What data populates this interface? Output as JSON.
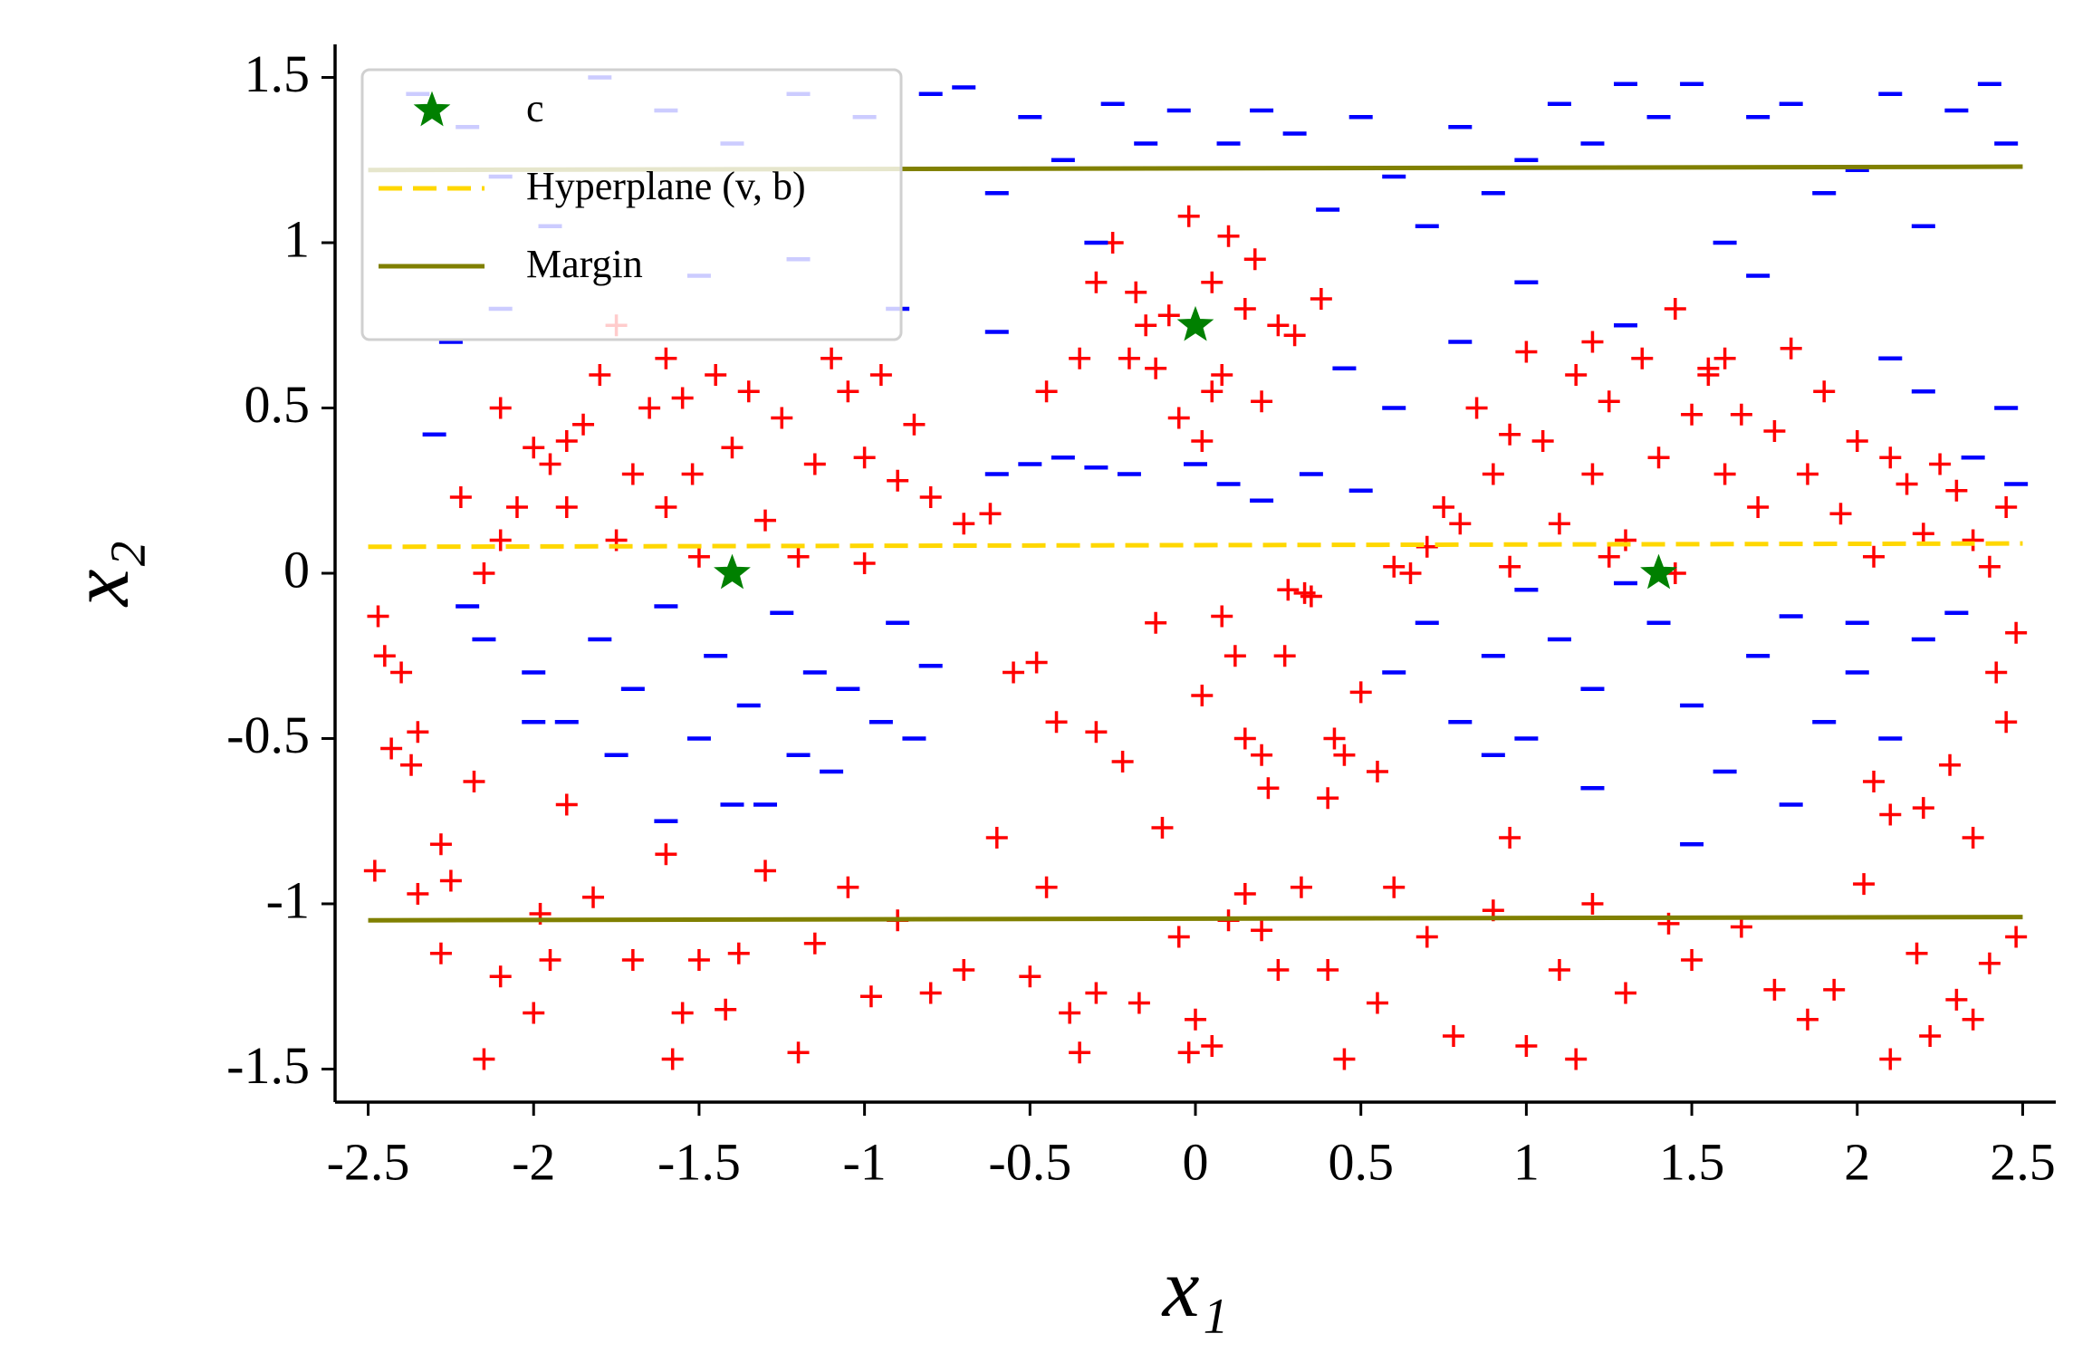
{
  "chart_data": {
    "type": "scatter",
    "xlabel": "x₁",
    "ylabel": "x₂",
    "xlim": [
      -2.6,
      2.6
    ],
    "ylim": [
      -1.6,
      1.6
    ],
    "xticks": [
      -2.5,
      -2,
      -1.5,
      -1,
      -0.5,
      0,
      0.5,
      1,
      1.5,
      2,
      2.5
    ],
    "yticks": [
      -1.5,
      -1,
      -0.5,
      0,
      0.5,
      1,
      1.5
    ],
    "legend": "upper left",
    "series": [
      {
        "color": "#ff0000",
        "marker": "+",
        "x": [
          -2.47,
          -2.45,
          -2.43,
          -2.4,
          -2.37,
          -2.35,
          -2.48,
          -2.35,
          -2.28,
          -2.25,
          -2.28,
          -2.15,
          -2.18,
          -2.1,
          -2.0,
          -1.98,
          -1.95,
          -1.9,
          -1.82,
          -1.7,
          -1.6,
          -1.55,
          -1.58,
          -1.5,
          -1.42,
          -1.38,
          -1.3,
          -1.2,
          -1.15,
          -1.05,
          -0.98,
          -0.9,
          -0.8,
          -0.7,
          -0.6,
          -0.5,
          -0.45,
          -0.38,
          -0.35,
          -0.3,
          -0.17,
          -0.1,
          -0.05,
          -0.02,
          0.05,
          0.0,
          0.1,
          0.15,
          0.2,
          0.25,
          0.32,
          0.4,
          0.45,
          0.55,
          0.6,
          0.7,
          0.78,
          0.9,
          0.95,
          1.0,
          1.1,
          1.15,
          1.2,
          1.3,
          1.43,
          1.5,
          1.65,
          1.75,
          1.85,
          1.93,
          2.02,
          2.1,
          2.18,
          2.22,
          2.3,
          2.35,
          2.4,
          2.48,
          2.45,
          2.42,
          2.35,
          2.28,
          2.2,
          2.1,
          2.05,
          2.48,
          -0.55,
          -0.48,
          -0.42,
          -0.3,
          -0.22,
          -0.12,
          0.02,
          0.08,
          0.12,
          0.15,
          0.2,
          0.27,
          0.35,
          0.42,
          0.22,
          0.5,
          0.55,
          0.45,
          0.4,
          -2.22,
          -2.1,
          -2.05,
          -2.0,
          -1.95,
          -1.9,
          -1.85,
          -1.8,
          -1.75,
          -1.7,
          -1.65,
          -1.6,
          -1.55,
          -1.52,
          -1.45,
          -1.4,
          -1.35,
          -1.3,
          -1.25,
          -1.15,
          -1.1,
          -1.05,
          -1.0,
          -0.95,
          -0.9,
          -0.85,
          -0.8,
          -0.7,
          -0.62,
          -1.5,
          -1.2,
          -1.0,
          -2.15,
          -2.1,
          -1.9,
          -1.75,
          -1.6,
          -0.45,
          -0.35,
          -0.3,
          -0.25,
          -0.2,
          -0.15,
          -0.18,
          -0.12,
          -0.08,
          -0.05,
          -0.02,
          0.02,
          0.05,
          0.08,
          0.1,
          0.15,
          0.18,
          0.2,
          0.25,
          0.3,
          0.38,
          0.05,
          0.6,
          0.65,
          0.7,
          0.75,
          0.8,
          0.85,
          0.9,
          0.95,
          1.0,
          1.05,
          1.1,
          1.15,
          1.2,
          1.25,
          1.3,
          1.35,
          1.4,
          1.45,
          1.5,
          1.55,
          1.6,
          1.65,
          1.7,
          1.75,
          1.8,
          1.85,
          1.9,
          1.95,
          2.0,
          2.05,
          2.1,
          2.15,
          2.2,
          2.25,
          2.3,
          2.35,
          2.4,
          2.45,
          1.25,
          1.45,
          0.95,
          0.33,
          0.28,
          1.2,
          1.55,
          1.6
        ],
        "values": [
          -0.13,
          -0.25,
          -0.53,
          -0.3,
          -0.58,
          -0.48,
          -0.9,
          -0.97,
          -0.82,
          -0.93,
          -1.15,
          -1.47,
          -0.63,
          -1.22,
          -1.33,
          -1.03,
          -1.17,
          -0.7,
          -0.98,
          -1.17,
          -0.85,
          -1.33,
          -1.47,
          -1.17,
          -1.32,
          -1.15,
          -0.9,
          -1.45,
          -1.12,
          -0.95,
          -1.28,
          -1.05,
          -1.27,
          -1.2,
          -0.8,
          -1.22,
          -0.95,
          -1.33,
          -1.45,
          -1.27,
          -1.3,
          -0.77,
          -1.1,
          -1.45,
          -1.43,
          -1.35,
          -1.05,
          -0.97,
          -1.08,
          -1.2,
          -0.95,
          -1.2,
          -1.47,
          -1.3,
          -0.95,
          -1.1,
          -1.4,
          -1.02,
          -0.8,
          -1.43,
          -1.2,
          -1.47,
          -1.0,
          -1.27,
          -1.06,
          -1.17,
          -1.07,
          -1.26,
          -1.35,
          -1.26,
          -0.94,
          -1.47,
          -1.15,
          -1.4,
          -1.29,
          -1.35,
          -1.18,
          -1.1,
          -0.45,
          -0.3,
          -0.8,
          -0.58,
          -0.71,
          -0.73,
          -0.63,
          -0.18,
          -0.3,
          -0.27,
          -0.45,
          -0.48,
          -0.57,
          -0.15,
          -0.37,
          -0.13,
          -0.25,
          -0.5,
          -0.55,
          -0.25,
          -0.07,
          -0.5,
          -0.65,
          -0.36,
          -0.6,
          -0.55,
          -0.68,
          0.23,
          0.1,
          0.2,
          0.38,
          0.33,
          0.2,
          0.45,
          0.6,
          0.75,
          0.3,
          0.5,
          0.2,
          0.53,
          0.3,
          0.6,
          0.38,
          0.55,
          0.16,
          0.47,
          0.33,
          0.65,
          0.55,
          0.35,
          0.6,
          0.28,
          0.45,
          0.23,
          0.15,
          0.18,
          0.05,
          0.05,
          0.03,
          0.0,
          0.5,
          0.4,
          0.1,
          0.65,
          0.55,
          0.65,
          0.88,
          1.0,
          0.65,
          0.75,
          0.85,
          0.62,
          0.78,
          0.47,
          1.08,
          0.4,
          0.88,
          0.6,
          1.02,
          0.8,
          0.95,
          0.52,
          0.75,
          0.72,
          0.83,
          0.55,
          0.02,
          0.0,
          0.08,
          0.2,
          0.15,
          0.5,
          0.3,
          0.42,
          0.67,
          0.4,
          0.15,
          0.6,
          0.3,
          0.52,
          0.1,
          0.65,
          0.35,
          0.8,
          0.48,
          0.62,
          0.3,
          0.48,
          0.2,
          0.43,
          0.68,
          0.3,
          0.55,
          0.18,
          0.4,
          0.05,
          0.35,
          0.27,
          0.12,
          0.33,
          0.25,
          0.1,
          0.02,
          0.2,
          0.05,
          0.0,
          0.02,
          -0.06,
          -0.05,
          0.7,
          0.6,
          0.65
        ]
      },
      {
        "color": "#0000ff",
        "marker": "_",
        "x": [
          -2.35,
          -2.2,
          -2.1,
          -1.8,
          -1.6,
          -1.4,
          -1.2,
          -1.0,
          -0.8,
          -0.7,
          -0.6,
          -0.5,
          -0.4,
          -0.3,
          -0.25,
          -0.15,
          -0.05,
          0.1,
          0.2,
          0.3,
          0.4,
          0.5,
          0.6,
          0.7,
          0.8,
          0.9,
          1.0,
          1.1,
          1.2,
          1.3,
          1.4,
          1.5,
          1.6,
          1.7,
          1.8,
          1.9,
          2.0,
          2.1,
          2.2,
          2.3,
          2.4,
          2.45,
          2.35,
          2.45,
          2.48,
          2.2,
          0.6,
          0.8,
          1.0,
          1.3,
          1.7,
          2.1,
          -2.3,
          -2.25,
          -2.1,
          -1.95,
          -1.5,
          -1.2,
          -0.9,
          -0.6,
          -0.4,
          -0.3,
          -0.2,
          0.0,
          0.1,
          0.2,
          0.35,
          0.45,
          0.5,
          -0.6,
          -0.5,
          -2.2,
          -2.15,
          -2.0,
          -1.9,
          -1.8,
          -1.7,
          -1.6,
          -1.5,
          -1.45,
          -1.35,
          -1.3,
          -1.25,
          -1.15,
          -1.1,
          -1.05,
          -0.95,
          -0.9,
          -0.85,
          -0.8,
          -1.4,
          -1.6,
          -1.2,
          -2.0,
          -1.75,
          0.6,
          0.7,
          0.8,
          0.9,
          1.0,
          1.1,
          1.2,
          1.3,
          1.4,
          1.5,
          1.6,
          1.7,
          1.8,
          1.9,
          2.0,
          2.1,
          2.2,
          2.3,
          1.5,
          1.8,
          1.2,
          0.9,
          2.0,
          1.0
        ],
        "values": [
          1.45,
          1.35,
          1.2,
          1.5,
          1.4,
          1.3,
          1.45,
          1.38,
          1.45,
          1.47,
          1.15,
          1.38,
          1.25,
          1.0,
          1.42,
          1.3,
          1.4,
          1.3,
          1.4,
          1.33,
          1.1,
          1.38,
          1.2,
          1.05,
          1.35,
          1.15,
          1.25,
          1.42,
          1.3,
          1.48,
          1.38,
          1.48,
          1.0,
          1.38,
          1.42,
          1.15,
          1.22,
          1.45,
          1.05,
          1.4,
          1.48,
          1.3,
          0.35,
          0.5,
          0.27,
          0.55,
          0.5,
          0.7,
          0.88,
          0.75,
          0.9,
          0.65,
          0.42,
          0.7,
          0.8,
          1.05,
          0.9,
          0.95,
          0.8,
          0.73,
          0.35,
          0.32,
          0.3,
          0.33,
          0.27,
          0.22,
          0.3,
          0.62,
          0.25,
          0.3,
          0.33,
          -0.1,
          -0.2,
          -0.3,
          -0.45,
          -0.2,
          -0.35,
          -0.1,
          -0.5,
          -0.25,
          -0.4,
          -0.7,
          -0.12,
          -0.3,
          -0.6,
          -0.35,
          -0.45,
          -0.15,
          -0.5,
          -0.28,
          -0.7,
          -0.75,
          -0.55,
          -0.45,
          -0.55,
          -0.3,
          -0.15,
          -0.45,
          -0.25,
          -0.5,
          -0.2,
          -0.35,
          -0.03,
          -0.15,
          -0.4,
          -0.6,
          -0.25,
          -0.13,
          -0.45,
          -0.3,
          -0.5,
          -0.2,
          -0.12,
          -0.82,
          -0.7,
          -0.65,
          -0.55,
          -0.15,
          -0.05
        ]
      },
      {
        "name": "c",
        "color": "#008000",
        "marker": "*",
        "x": [
          -1.4,
          0,
          1.4
        ],
        "values": [
          0,
          0.75,
          0
        ]
      },
      {
        "name": "Hyperplane (v, b)",
        "color": "#ffd700",
        "linestyle": "dashed",
        "x": [
          -2.5,
          2.5
        ],
        "values": [
          0.08,
          0.09
        ]
      },
      {
        "name": "Margin",
        "color": "#808000",
        "linestyle": "solid",
        "x": [
          -2.5,
          2.5,
          null,
          -2.5,
          2.5
        ],
        "values": [
          1.22,
          1.23,
          null,
          -1.05,
          -1.04
        ]
      }
    ]
  }
}
